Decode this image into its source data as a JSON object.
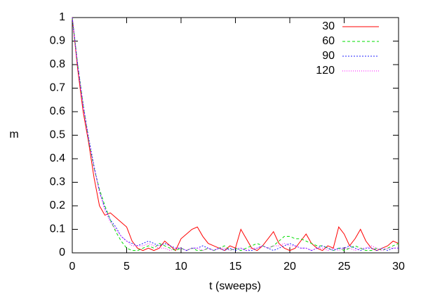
{
  "chart_data": {
    "type": "line",
    "x_label": "t (sweeps)",
    "y_label": "m",
    "xlim": [
      0,
      30
    ],
    "ylim": [
      0,
      1
    ],
    "xticks": [
      0,
      5,
      10,
      15,
      20,
      25,
      30
    ],
    "yticks": [
      0,
      0.1,
      0.2,
      0.3,
      0.4,
      0.5,
      0.6,
      0.7,
      0.8,
      0.9,
      1
    ],
    "grid": false,
    "legend": "top-right",
    "x": [
      0,
      0.5,
      1,
      1.5,
      2,
      2.5,
      3,
      3.5,
      4,
      4.5,
      5,
      5.5,
      6,
      6.5,
      7,
      7.5,
      8,
      8.5,
      9,
      9.5,
      10,
      10.5,
      11,
      11.5,
      12,
      12.5,
      13,
      13.5,
      14,
      14.5,
      15,
      15.5,
      16,
      16.5,
      17,
      17.5,
      18,
      18.5,
      19,
      19.5,
      20,
      20.5,
      21,
      21.5,
      22,
      22.5,
      23,
      23.5,
      24,
      24.5,
      25,
      25.5,
      26,
      26.5,
      27,
      27.5,
      28,
      28.5,
      29,
      29.5,
      30
    ],
    "series": [
      {
        "name": "30",
        "color": "#ff0000",
        "dash": "none",
        "values": [
          1,
          0.78,
          0.6,
          0.47,
          0.32,
          0.2,
          0.16,
          0.17,
          0.15,
          0.13,
          0.11,
          0.05,
          0.02,
          0.01,
          0.02,
          0.01,
          0.02,
          0.05,
          0.03,
          0.01,
          0.06,
          0.08,
          0.1,
          0.11,
          0.07,
          0.04,
          0.03,
          0.02,
          0.01,
          0.03,
          0.02,
          0.1,
          0.06,
          0.02,
          0.01,
          0.03,
          0.06,
          0.09,
          0.04,
          0.02,
          0.01,
          0.02,
          0.05,
          0.08,
          0.04,
          0.02,
          0.01,
          0.03,
          0.02,
          0.11,
          0.08,
          0.03,
          0.06,
          0.1,
          0.05,
          0.02,
          0.01,
          0.02,
          0.03,
          0.05,
          0.04
        ]
      },
      {
        "name": "60",
        "color": "#00dd00",
        "dash": "4,3",
        "values": [
          1,
          0.8,
          0.63,
          0.48,
          0.36,
          0.27,
          0.2,
          0.14,
          0.09,
          0.05,
          0.02,
          0.01,
          0.01,
          0.02,
          0.03,
          0.02,
          0.04,
          0.03,
          0.02,
          0.01,
          0.02,
          0.01,
          0.02,
          0.01,
          0.01,
          0.02,
          0.01,
          0.02,
          0.03,
          0.01,
          0.02,
          0.01,
          0.02,
          0.03,
          0.04,
          0.03,
          0.02,
          0.03,
          0.05,
          0.07,
          0.07,
          0.06,
          0.06,
          0.05,
          0.04,
          0.03,
          0.03,
          0.02,
          0.01,
          0.02,
          0.01,
          0.02,
          0.03,
          0.02,
          0.01,
          0.01,
          0.02,
          0.01,
          0.02,
          0.03,
          0.04
        ]
      },
      {
        "name": "90",
        "color": "#2020ff",
        "dash": "2,2",
        "values": [
          1,
          0.8,
          0.63,
          0.49,
          0.37,
          0.26,
          0.19,
          0.14,
          0.11,
          0.07,
          0.05,
          0.04,
          0.03,
          0.04,
          0.05,
          0.04,
          0.03,
          0.04,
          0.03,
          0.02,
          0.02,
          0.01,
          0.02,
          0.02,
          0.03,
          0.02,
          0.01,
          0.02,
          0.01,
          0.02,
          0.01,
          0.02,
          0.01,
          0.01,
          0.02,
          0.03,
          0.02,
          0.01,
          0.02,
          0.03,
          0.04,
          0.03,
          0.02,
          0.02,
          0.01,
          0.02,
          0.03,
          0.02,
          0.01,
          0.02,
          0.02,
          0.03,
          0.02,
          0.01,
          0.02,
          0.02,
          0.01,
          0.02,
          0.01,
          0.02,
          0.02
        ]
      },
      {
        "name": "120",
        "color": "#ff00ff",
        "dash": "1,2",
        "values": [
          1,
          0.79,
          0.62,
          0.48,
          0.36,
          0.26,
          0.18,
          0.13,
          0.1,
          0.07,
          0.05,
          0.03,
          0.03,
          0.03,
          0.04,
          0.03,
          0.02,
          0.02,
          0.01,
          0.02,
          0.02,
          0.01,
          0.02,
          0.02,
          0.01,
          0.02,
          0.01,
          0.02,
          0.02,
          0.01,
          0.02,
          0.02,
          0.01,
          0.02,
          0.02,
          0.03,
          0.02,
          0.03,
          0.03,
          0.04,
          0.03,
          0.03,
          0.02,
          0.02,
          0.01,
          0.02,
          0.02,
          0.01,
          0.02,
          0.01,
          0.02,
          0.02,
          0.01,
          0.02,
          0.02,
          0.03,
          0.02,
          0.01,
          0.02,
          0.02,
          0.02
        ]
      }
    ]
  }
}
